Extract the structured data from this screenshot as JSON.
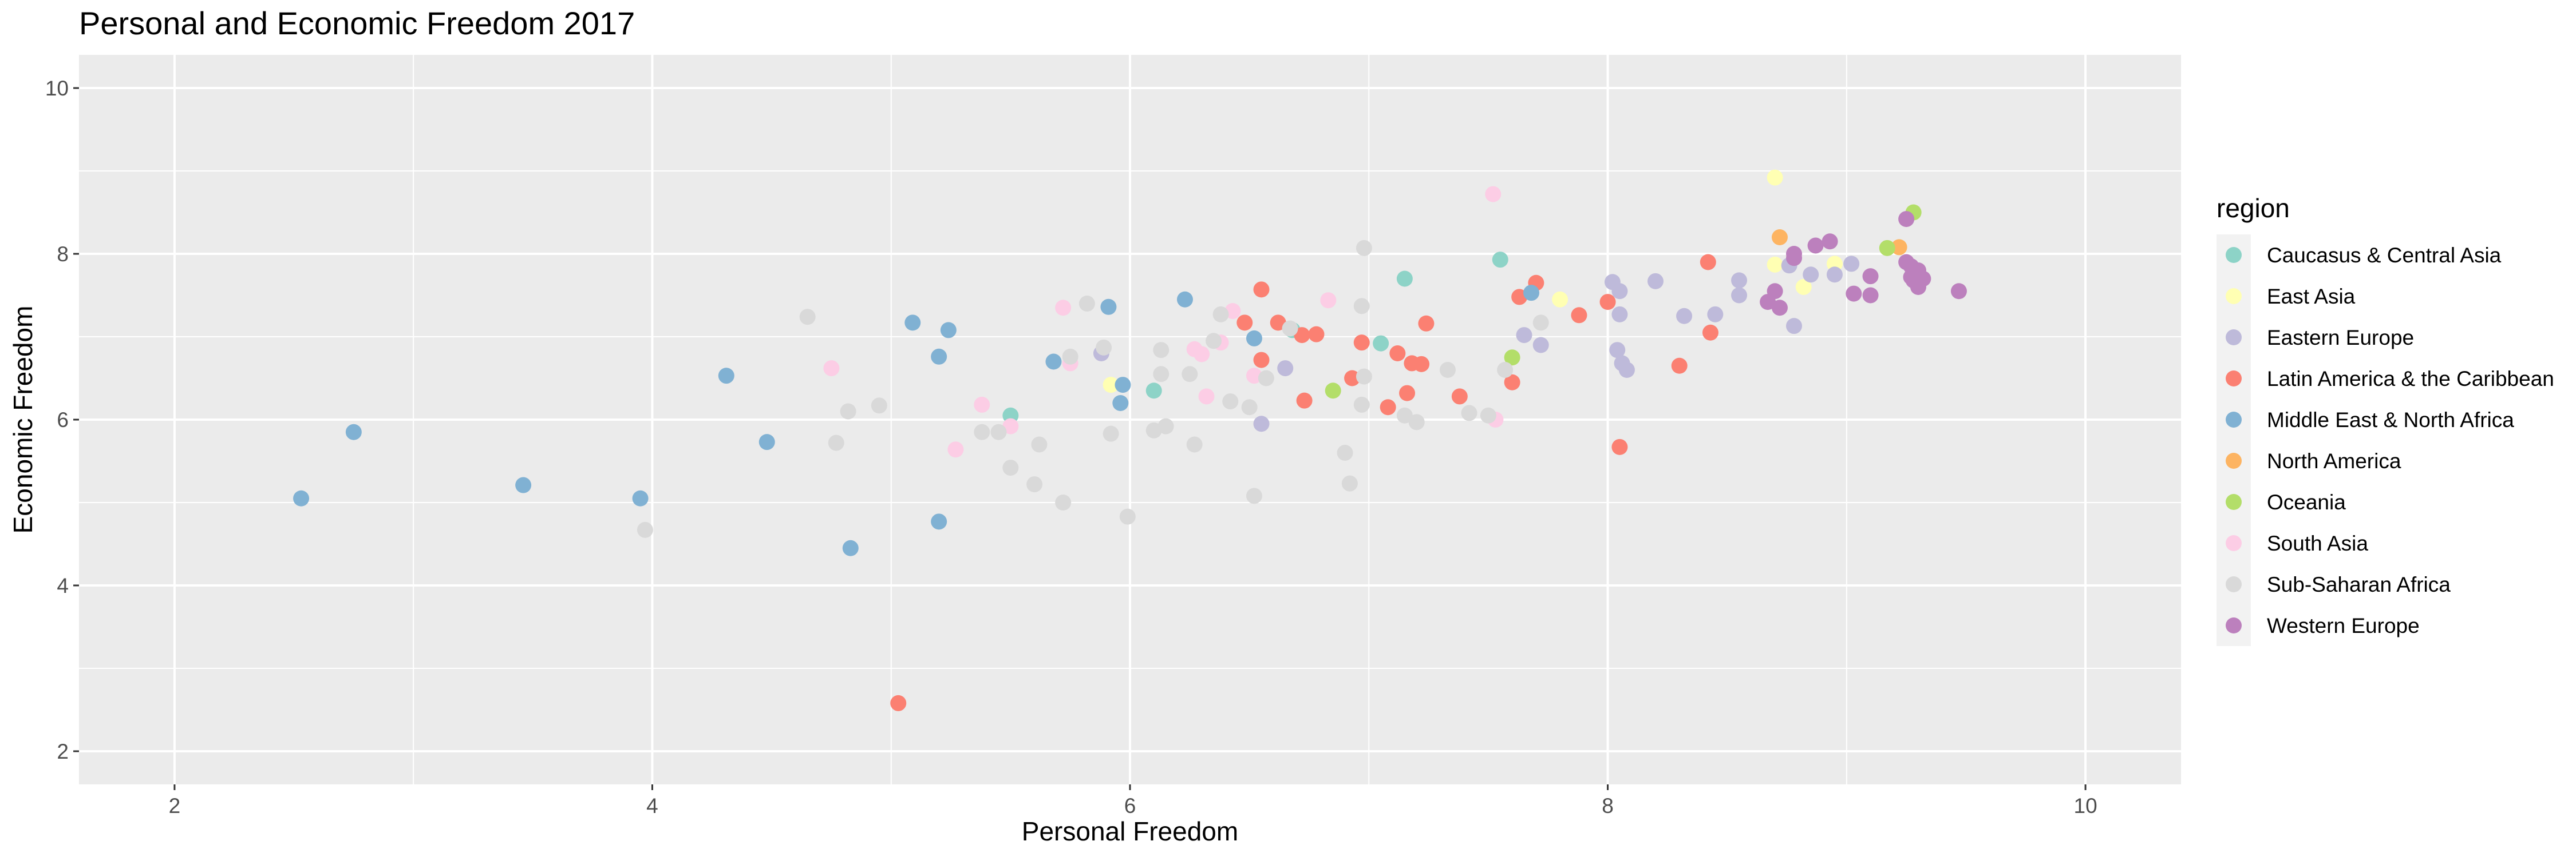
{
  "chart_data": {
    "type": "scatter",
    "title": "Personal and Economic Freedom 2017",
    "xlabel": "Personal Freedom",
    "ylabel": "Economic Freedom",
    "xlim": [
      1.6,
      10.4
    ],
    "ylim": [
      1.6,
      10.4
    ],
    "xticks": [
      "2",
      "4",
      "6",
      "8",
      "10"
    ],
    "yticks": [
      "2",
      "4",
      "6",
      "8",
      "10"
    ],
    "grid": true,
    "legend": {
      "title": "region",
      "position": "right"
    },
    "series": [
      {
        "name": "Caucasus & Central Asia",
        "color": "#8DD3C7",
        "points": [
          [
            5.5,
            6.05
          ],
          [
            6.1,
            6.35
          ],
          [
            6.68,
            7.08
          ],
          [
            7.05,
            6.92
          ],
          [
            7.15,
            7.7
          ],
          [
            7.55,
            7.93
          ]
        ]
      },
      {
        "name": "East Asia",
        "color": "#FFFFB3",
        "points": [
          [
            5.92,
            6.42
          ],
          [
            8.7,
            8.92
          ],
          [
            8.7,
            7.87
          ],
          [
            8.82,
            7.6
          ],
          [
            8.95,
            7.88
          ],
          [
            7.8,
            7.45
          ],
          [
            9.22,
            8.08
          ]
        ]
      },
      {
        "name": "Eastern Europe",
        "color": "#BEBADA",
        "points": [
          [
            5.88,
            6.8
          ],
          [
            6.55,
            5.95
          ],
          [
            6.65,
            6.62
          ],
          [
            7.65,
            7.02
          ],
          [
            7.72,
            6.9
          ],
          [
            8.02,
            7.66
          ],
          [
            8.05,
            7.55
          ],
          [
            8.05,
            7.27
          ],
          [
            8.04,
            6.84
          ],
          [
            8.06,
            6.68
          ],
          [
            8.08,
            6.6
          ],
          [
            8.2,
            7.67
          ],
          [
            8.32,
            7.25
          ],
          [
            8.45,
            7.27
          ],
          [
            8.55,
            7.68
          ],
          [
            8.55,
            7.5
          ],
          [
            8.76,
            7.86
          ],
          [
            8.78,
            7.13
          ],
          [
            8.85,
            7.75
          ],
          [
            8.95,
            7.75
          ],
          [
            9.02,
            7.88
          ]
        ]
      },
      {
        "name": "Latin America & the Caribbean",
        "color": "#FB8072",
        "points": [
          [
            5.03,
            2.58
          ],
          [
            6.48,
            7.17
          ],
          [
            6.55,
            7.57
          ],
          [
            6.55,
            6.72
          ],
          [
            6.62,
            7.17
          ],
          [
            6.72,
            7.02
          ],
          [
            6.73,
            6.23
          ],
          [
            6.78,
            7.03
          ],
          [
            6.93,
            6.5
          ],
          [
            6.97,
            6.93
          ],
          [
            7.08,
            6.15
          ],
          [
            7.12,
            6.8
          ],
          [
            7.16,
            6.32
          ],
          [
            7.18,
            6.68
          ],
          [
            7.22,
            6.67
          ],
          [
            7.24,
            7.16
          ],
          [
            7.38,
            6.28
          ],
          [
            7.6,
            6.45
          ],
          [
            7.63,
            7.48
          ],
          [
            7.7,
            7.65
          ],
          [
            7.88,
            7.26
          ],
          [
            8,
            7.42
          ],
          [
            8.05,
            5.67
          ],
          [
            8.3,
            6.65
          ],
          [
            8.42,
            7.9
          ],
          [
            8.43,
            7.05
          ]
        ]
      },
      {
        "name": "Middle East & North Africa",
        "color": "#80B1D3",
        "points": [
          [
            2.53,
            5.05
          ],
          [
            2.75,
            5.85
          ],
          [
            3.46,
            5.21
          ],
          [
            3.95,
            5.05
          ],
          [
            4.31,
            6.53
          ],
          [
            4.48,
            5.73
          ],
          [
            4.83,
            4.45
          ],
          [
            5.09,
            7.17
          ],
          [
            5.2,
            6.76
          ],
          [
            5.2,
            4.77
          ],
          [
            5.24,
            7.08
          ],
          [
            5.68,
            6.7
          ],
          [
            5.91,
            7.36
          ],
          [
            5.96,
            6.2
          ],
          [
            5.97,
            6.42
          ],
          [
            6.23,
            7.45
          ],
          [
            6.52,
            6.98
          ],
          [
            7.68,
            7.53
          ]
        ]
      },
      {
        "name": "North America",
        "color": "#FDB462",
        "points": [
          [
            8.72,
            8.2
          ],
          [
            9.22,
            8.08
          ]
        ]
      },
      {
        "name": "Oceania",
        "color": "#B3DE69",
        "points": [
          [
            6.85,
            6.35
          ],
          [
            7.6,
            6.75
          ],
          [
            9.17,
            8.07
          ],
          [
            9.28,
            8.5
          ]
        ]
      },
      {
        "name": "South Asia",
        "color": "#FCCDE5",
        "points": [
          [
            4.75,
            6.62
          ],
          [
            5.27,
            5.64
          ],
          [
            5.38,
            6.18
          ],
          [
            5.5,
            5.92
          ],
          [
            5.72,
            7.35
          ],
          [
            5.75,
            6.68
          ],
          [
            6.27,
            6.85
          ],
          [
            6.3,
            6.79
          ],
          [
            6.32,
            6.28
          ],
          [
            6.38,
            6.93
          ],
          [
            6.43,
            7.31
          ],
          [
            6.52,
            6.53
          ],
          [
            6.83,
            7.44
          ],
          [
            7.52,
            8.72
          ],
          [
            7.53,
            6.0
          ]
        ]
      },
      {
        "name": "Sub-Saharan Africa",
        "color": "#D9D9D9",
        "points": [
          [
            3.97,
            4.67
          ],
          [
            4.65,
            7.24
          ],
          [
            4.77,
            5.72
          ],
          [
            4.82,
            6.1
          ],
          [
            4.95,
            6.17
          ],
          [
            5.38,
            5.85
          ],
          [
            5.45,
            5.85
          ],
          [
            5.5,
            5.42
          ],
          [
            5.6,
            5.22
          ],
          [
            5.62,
            5.7
          ],
          [
            5.72,
            5.0
          ],
          [
            5.75,
            6.76
          ],
          [
            5.82,
            7.4
          ],
          [
            5.89,
            6.87
          ],
          [
            5.92,
            5.83
          ],
          [
            5.99,
            4.83
          ],
          [
            6.1,
            5.87
          ],
          [
            6.13,
            6.84
          ],
          [
            6.13,
            6.55
          ],
          [
            6.15,
            5.92
          ],
          [
            6.25,
            6.55
          ],
          [
            6.27,
            5.7
          ],
          [
            6.35,
            6.95
          ],
          [
            6.38,
            7.27
          ],
          [
            6.42,
            6.22
          ],
          [
            6.5,
            6.15
          ],
          [
            6.52,
            5.08
          ],
          [
            6.57,
            6.5
          ],
          [
            6.67,
            7.1
          ],
          [
            6.9,
            5.6
          ],
          [
            6.92,
            5.23
          ],
          [
            6.97,
            7.37
          ],
          [
            6.98,
            6.52
          ],
          [
            6.97,
            6.18
          ],
          [
            6.98,
            8.07
          ],
          [
            7.15,
            6.05
          ],
          [
            7.2,
            5.97
          ],
          [
            7.33,
            6.6
          ],
          [
            7.42,
            6.08
          ],
          [
            7.5,
            6.05
          ],
          [
            7.57,
            6.6
          ],
          [
            7.72,
            7.17
          ]
        ]
      },
      {
        "name": "Western Europe",
        "color": "#BC80BD",
        "points": [
          [
            8.67,
            7.42
          ],
          [
            8.7,
            7.55
          ],
          [
            8.72,
            7.35
          ],
          [
            8.78,
            7.95
          ],
          [
            8.78,
            8.0
          ],
          [
            8.87,
            8.1
          ],
          [
            8.93,
            8.15
          ],
          [
            9.03,
            7.52
          ],
          [
            9.1,
            7.5
          ],
          [
            9.1,
            7.73
          ],
          [
            9.25,
            8.42
          ],
          [
            9.25,
            7.9
          ],
          [
            9.27,
            7.85
          ],
          [
            9.27,
            7.72
          ],
          [
            9.28,
            7.68
          ],
          [
            9.3,
            7.8
          ],
          [
            9.3,
            7.6
          ],
          [
            9.3,
            7.65
          ],
          [
            9.32,
            7.7
          ],
          [
            9.47,
            7.55
          ]
        ]
      }
    ]
  }
}
